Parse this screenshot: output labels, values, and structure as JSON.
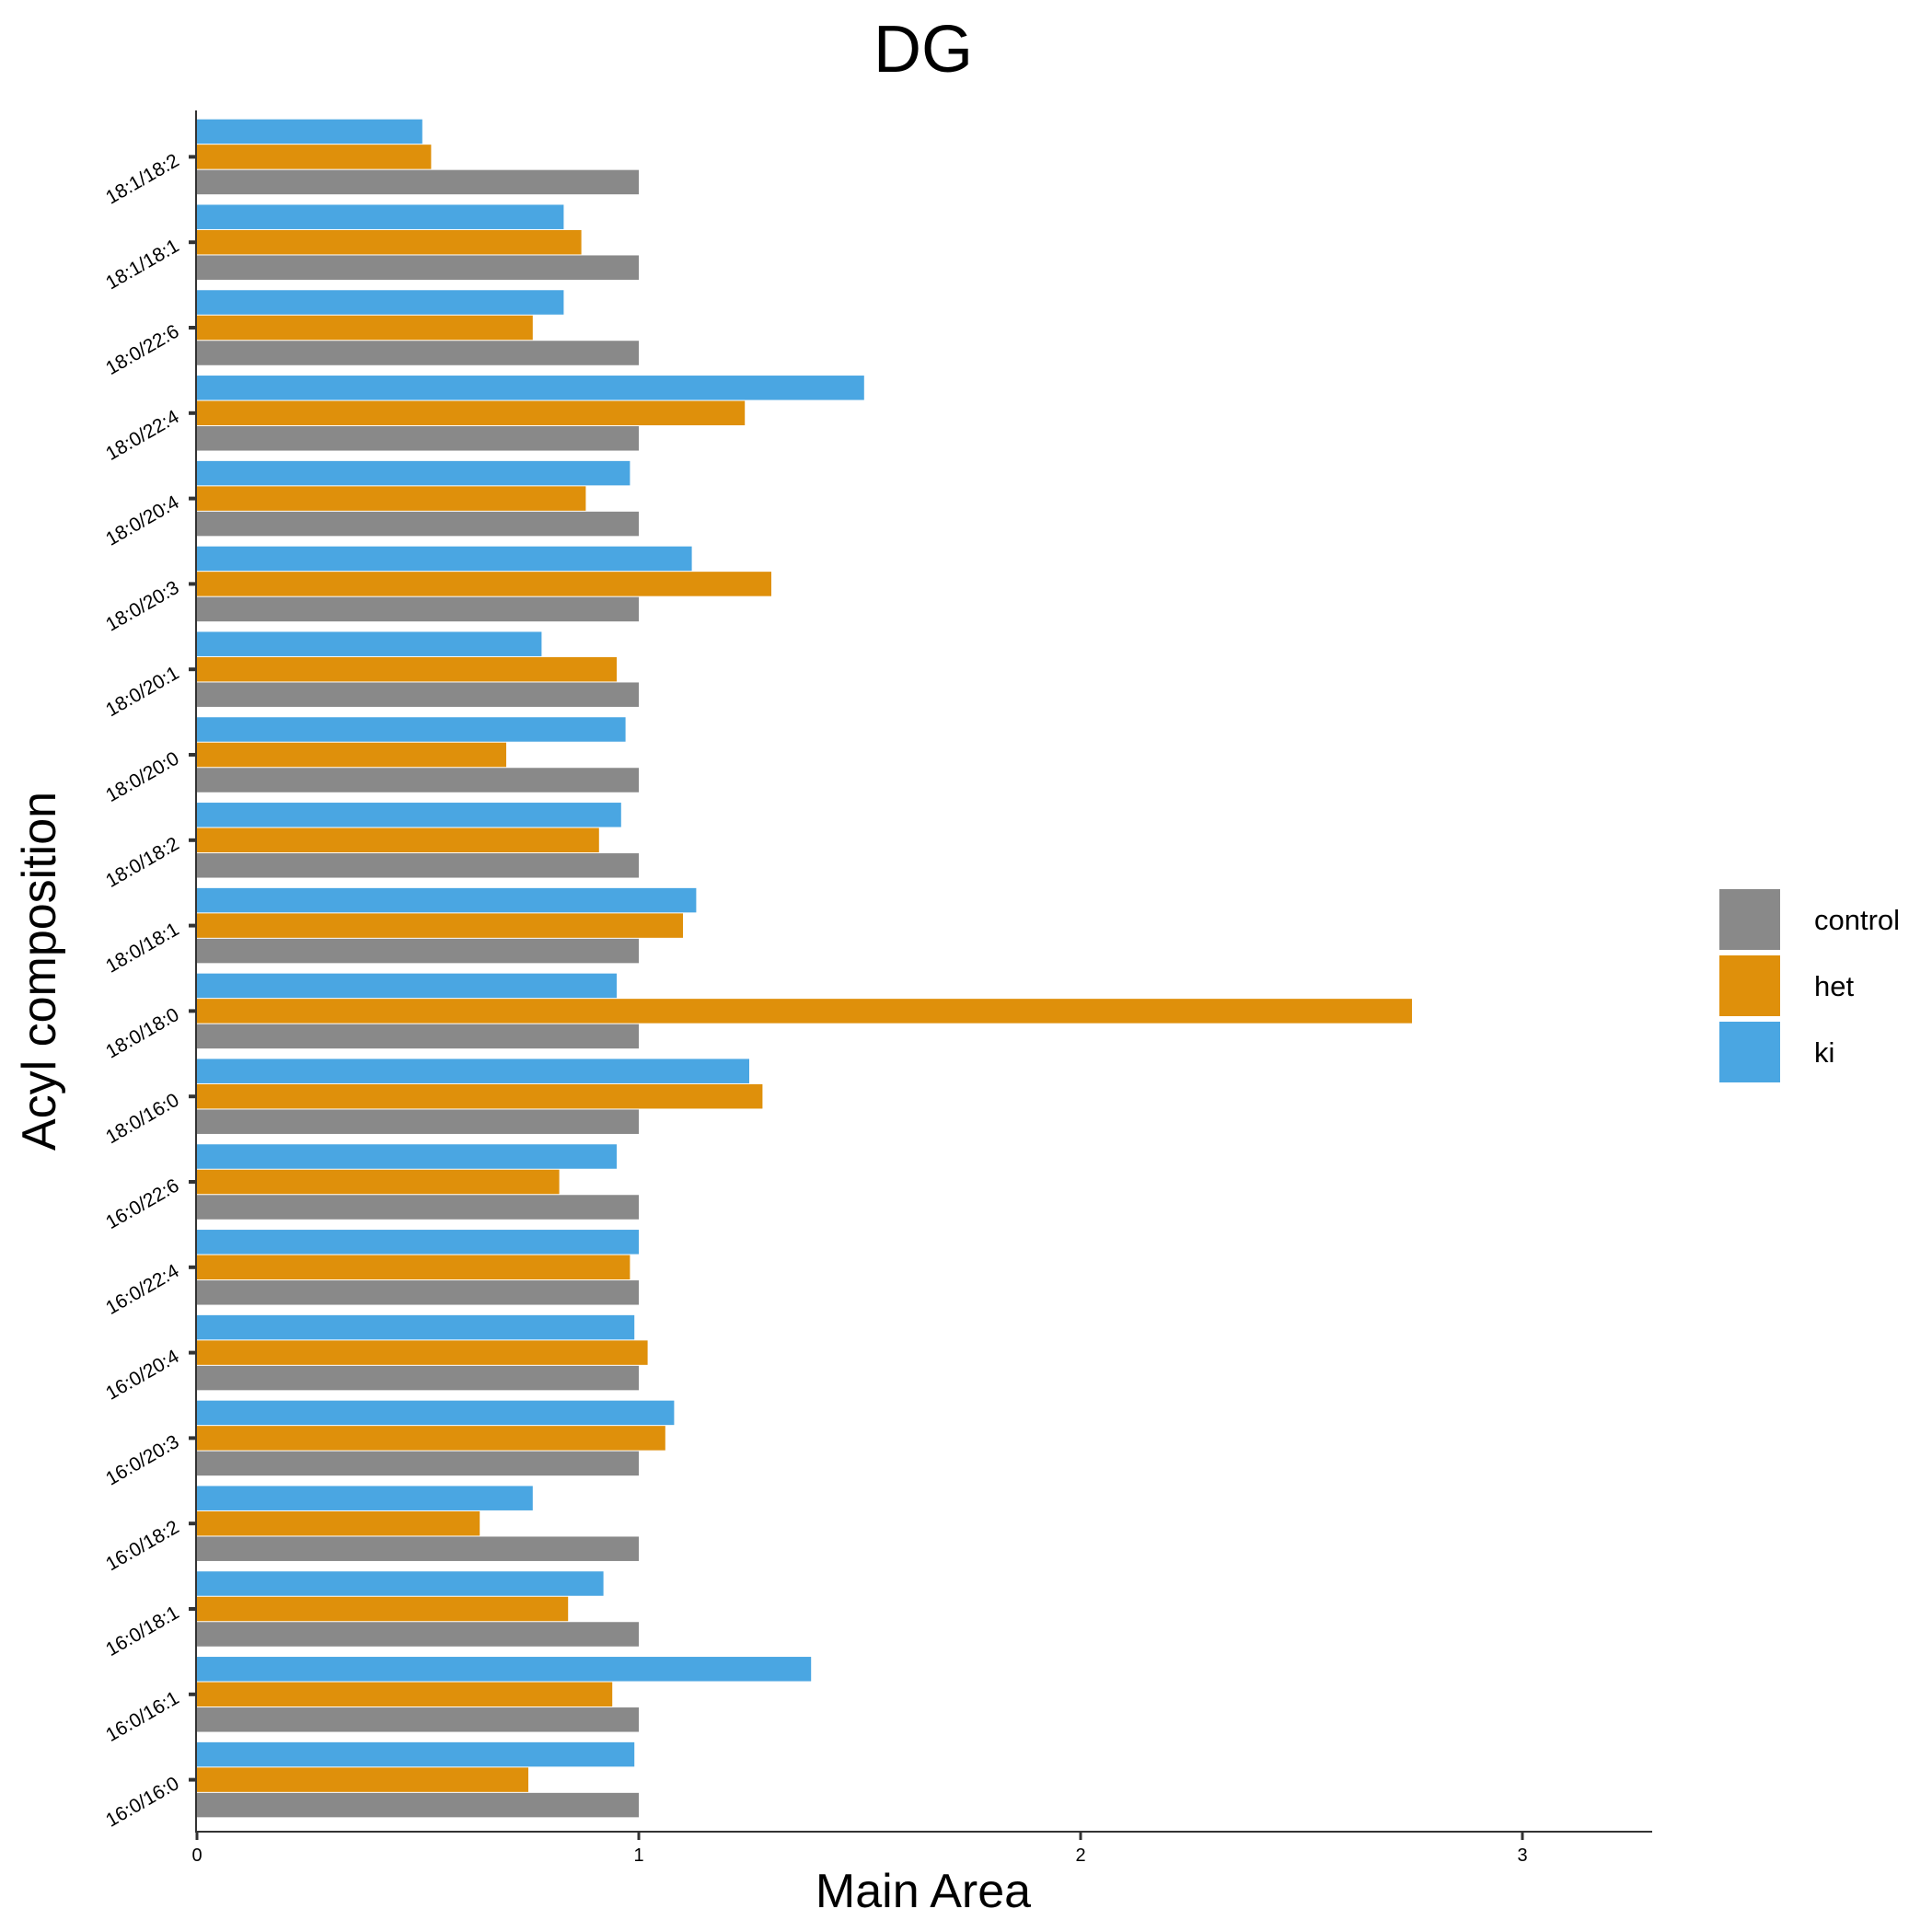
{
  "chart_data": {
    "type": "bar",
    "orientation": "horizontal",
    "title": "DG",
    "xlabel": "Main Area",
    "ylabel": "Acyl composition",
    "xlim": [
      0,
      3.3
    ],
    "xticks": [
      0,
      1,
      2,
      3
    ],
    "grid": false,
    "legend_position": "right",
    "categories": [
      "16:0/16:0",
      "16:0/16:1",
      "16:0/18:1",
      "16:0/18:2",
      "16:0/20:3",
      "16:0/20:4",
      "16:0/22:4",
      "16:0/22:6",
      "18:0/16:0",
      "18:0/18:0",
      "18:0/18:1",
      "18:0/18:2",
      "18:0/20:0",
      "18:0/20:1",
      "18:0/20:3",
      "18:0/20:4",
      "18:0/22:4",
      "18:0/22:6",
      "18:1/18:1",
      "18:1/18:2"
    ],
    "series": [
      {
        "name": "control",
        "color": "#898989",
        "values": [
          1.0,
          1.0,
          1.0,
          1.0,
          1.0,
          1.0,
          1.0,
          1.0,
          1.0,
          1.0,
          1.0,
          1.0,
          1.0,
          1.0,
          1.0,
          1.0,
          1.0,
          1.0,
          1.0,
          1.0
        ]
      },
      {
        "name": "het",
        "color": "#df900b",
        "values": [
          0.75,
          0.94,
          0.84,
          0.64,
          1.06,
          1.02,
          0.98,
          0.82,
          1.28,
          2.75,
          1.1,
          0.91,
          0.7,
          0.95,
          1.3,
          0.88,
          1.24,
          0.76,
          0.87,
          0.53
        ]
      },
      {
        "name": "ki",
        "color": "#4aa6e2",
        "values": [
          0.99,
          1.39,
          0.92,
          0.76,
          1.08,
          0.99,
          1.0,
          0.95,
          1.25,
          0.95,
          1.13,
          0.96,
          0.97,
          0.78,
          1.12,
          0.98,
          1.51,
          0.83,
          0.83,
          0.51
        ]
      }
    ]
  }
}
